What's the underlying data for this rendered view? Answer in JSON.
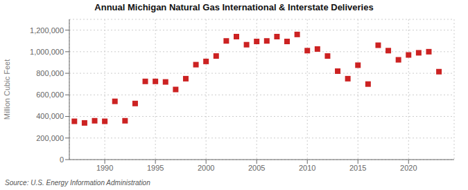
{
  "chart_data": {
    "type": "scatter",
    "title": "Annual Michigan Natural Gas International & Interstate Deliveries",
    "ylabel": "Million Cubic Feet",
    "annotation": "Source: U.S. Energy Information Administration",
    "color": "#cc2222",
    "marker": "square",
    "x": [
      1987,
      1988,
      1989,
      1990,
      1991,
      1992,
      1993,
      1994,
      1995,
      1996,
      1997,
      1998,
      1999,
      2000,
      2001,
      2002,
      2003,
      2004,
      2005,
      2006,
      2007,
      2008,
      2009,
      2010,
      2011,
      2012,
      2013,
      2014,
      2015,
      2016,
      2017,
      2018,
      2019,
      2020,
      2021,
      2022,
      2023
    ],
    "values": [
      355000,
      340000,
      360000,
      355000,
      540000,
      360000,
      520000,
      725000,
      725000,
      720000,
      650000,
      750000,
      880000,
      910000,
      960000,
      1100000,
      1140000,
      1065000,
      1095000,
      1100000,
      1140000,
      1095000,
      1160000,
      1010000,
      1025000,
      960000,
      820000,
      750000,
      875000,
      700000,
      1060000,
      1010000,
      925000,
      970000,
      990000,
      1000000,
      815000
    ],
    "xlim": [
      1986.5,
      2024.5
    ],
    "xticks": [
      1990,
      1995,
      2000,
      2005,
      2010,
      2015,
      2020
    ],
    "ylim": [
      0,
      1300000
    ],
    "yticks": [
      0,
      {
        "value": 200000,
        "label": "200,000"
      },
      {
        "value": 400000,
        "label": "400,000"
      },
      {
        "value": 600000,
        "label": "600,000"
      },
      {
        "value": 800000,
        "label": "800,000"
      },
      {
        "value": 1000000,
        "label": "1,000,000"
      },
      {
        "value": 1200000,
        "label": "1,200,000"
      }
    ],
    "grid": true
  }
}
